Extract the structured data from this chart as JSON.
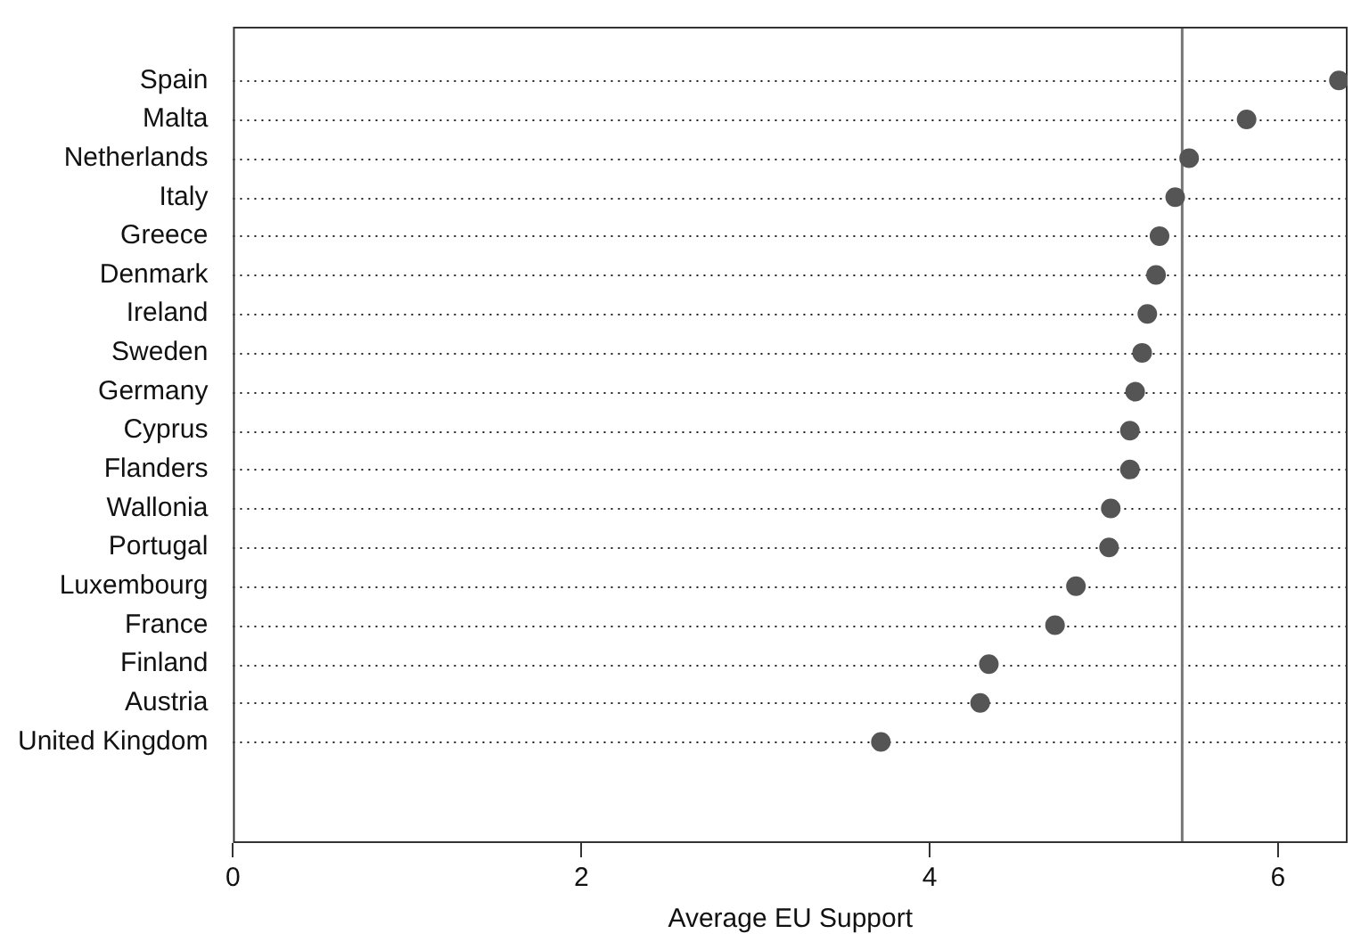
{
  "chart_data": {
    "type": "scatter",
    "orientation": "horizontal",
    "xlabel": "Average EU Support",
    "categories": [
      "Spain",
      "Malta",
      "Netherlands",
      "Italy",
      "Greece",
      "Denmark",
      "Ireland",
      "Sweden",
      "Germany",
      "Cyprus",
      "Flanders",
      "Wallonia",
      "Portugal",
      "Luxembourg",
      "France",
      "Finland",
      "Austria",
      "United Kingdom"
    ],
    "values": [
      6.35,
      5.82,
      5.49,
      5.41,
      5.32,
      5.3,
      5.25,
      5.22,
      5.18,
      5.15,
      5.15,
      5.04,
      5.03,
      4.84,
      4.72,
      4.34,
      4.29,
      3.72
    ],
    "color": "#555555",
    "marker": "circle",
    "xlim": [
      0,
      6.4
    ],
    "xticks": [
      0,
      2,
      4,
      6
    ],
    "grid": "y",
    "line_style": "dotted",
    "ref_lines": [
      {
        "axis": "x",
        "value": 5.45,
        "color": "#777777"
      }
    ]
  }
}
